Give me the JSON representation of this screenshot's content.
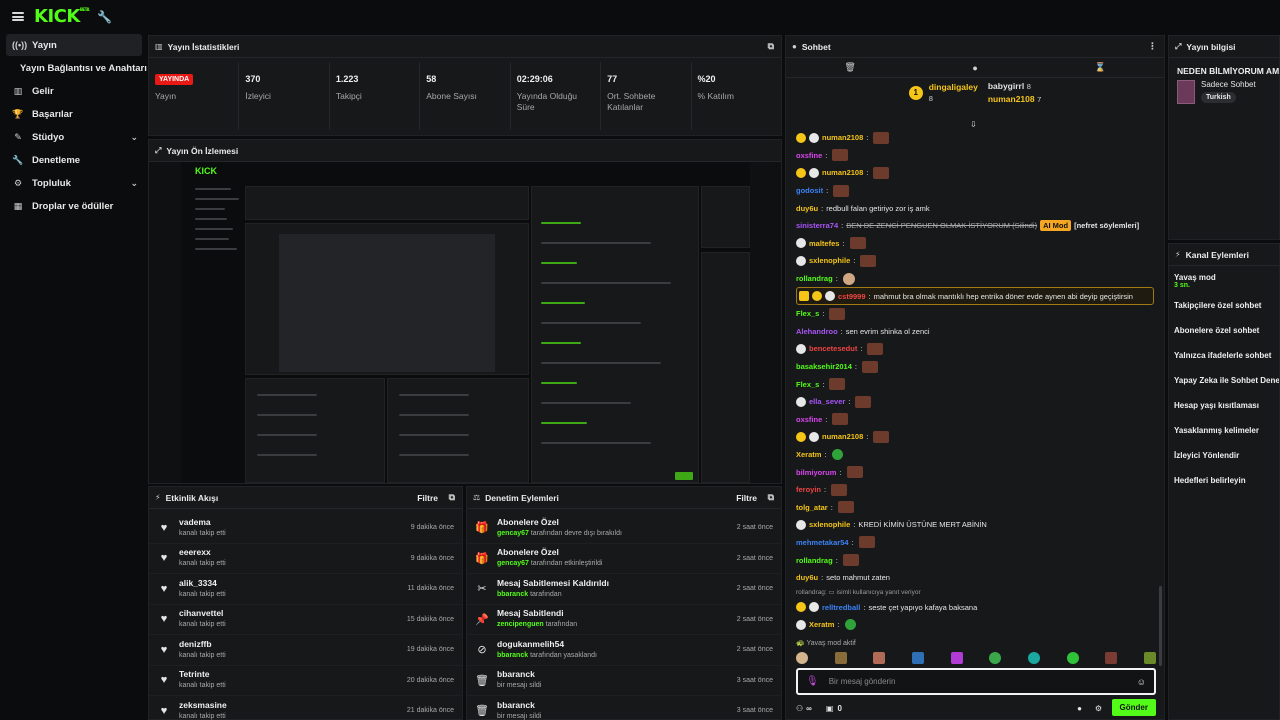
{
  "app": {
    "logo": "KICK",
    "logo_badge": "BETA"
  },
  "sidebar": {
    "items": [
      {
        "label": "Yayın",
        "icon": "broadcast-icon"
      },
      {
        "label": "Yayın Bağlantısı ve Anahtarı",
        "sub": true
      },
      {
        "label": "Gelir",
        "icon": "chart-icon"
      },
      {
        "label": "Başarılar",
        "icon": "trophy-icon"
      },
      {
        "label": "Stüdyo",
        "icon": "studio-icon"
      },
      {
        "label": "Denetleme",
        "icon": "wrench-icon"
      },
      {
        "label": "Topluluk",
        "icon": "community-icon"
      },
      {
        "label": "Droplar ve ödüller",
        "icon": "gift-icon"
      }
    ]
  },
  "stats": {
    "title": "Yayın İstatistikleri",
    "live_badge": "YAYINDA",
    "items": [
      {
        "value": "",
        "label": "Yayın"
      },
      {
        "value": "370",
        "label": "İzleyici"
      },
      {
        "value": "1.223",
        "label": "Takipçi"
      },
      {
        "value": "58",
        "label": "Abone Sayısı"
      },
      {
        "value": "02:29:06",
        "label": "Yayında Olduğu Süre"
      },
      {
        "value": "77",
        "label": "Ort. Sohbete Katılanlar"
      },
      {
        "value": "%20",
        "label": "% Katılım"
      }
    ]
  },
  "preview": {
    "title": "Yayın Ön İzlemesi",
    "mini_logo": "KICK"
  },
  "activity": {
    "title": "Etkinlik Akışı",
    "filter": "Filtre",
    "items": [
      {
        "name": "vadema",
        "sub": "kanalı takip etti",
        "time": "9 dakika önce"
      },
      {
        "name": "eeerexx",
        "sub": "kanalı takip etti",
        "time": "9 dakika önce"
      },
      {
        "name": "alik_3334",
        "sub": "kanalı takip etti",
        "time": "11 dakika önce"
      },
      {
        "name": "cihanvettel",
        "sub": "kanalı takip etti",
        "time": "15 dakika önce"
      },
      {
        "name": "denizffb",
        "sub": "kanalı takip etti",
        "time": "19 dakika önce"
      },
      {
        "name": "Tetrinte",
        "sub": "kanalı takip etti",
        "time": "20 dakika önce"
      },
      {
        "name": "zeksmasine",
        "sub": "kanalı takip etti",
        "time": "21 dakika önce"
      }
    ]
  },
  "moderation": {
    "title": "Denetim Eylemleri",
    "filter": "Filtre",
    "items": [
      {
        "icon": "gift-icon",
        "name": "Abonelere Özel",
        "actor": "gencay67",
        "sub": " tarafından devre dışı bırakıldı",
        "time": "2 saat önce"
      },
      {
        "icon": "gift-icon",
        "name": "Abonelere Özel",
        "actor": "gencay67",
        "sub": " tarafından etkinleştirildi",
        "time": "2 saat önce"
      },
      {
        "icon": "unpin-icon",
        "name": "Mesaj Sabitlemesi Kaldırıldı",
        "actor": "bbaranck",
        "sub": " tarafından",
        "time": "2 saat önce"
      },
      {
        "icon": "pin-icon",
        "name": "Mesaj Sabitlendi",
        "actor": "zencipenguen",
        "sub": " tarafından",
        "time": "2 saat önce"
      },
      {
        "icon": "ban-icon",
        "name": "dogukanmelih54",
        "actor": "bbaranck",
        "sub": " tarafından yasaklandı",
        "time": "2 saat önce"
      },
      {
        "icon": "trash-icon",
        "name": "bbaranck",
        "actor": "",
        "sub": "bir mesajı sildi",
        "time": "3 saat önce"
      },
      {
        "icon": "trash-icon",
        "name": "bbaranck",
        "actor": "",
        "sub": "bir mesajı sildi",
        "time": "3 saat önce"
      }
    ]
  },
  "chat": {
    "title": "Sohbet",
    "leaders": [
      {
        "rank": "1",
        "name": "dingaligaley",
        "count": "8"
      },
      {
        "name": "babygirrl",
        "count": "8"
      },
      {
        "name": "numan2108",
        "count": "7"
      }
    ],
    "messages": [
      {
        "badges": [
          "gold",
          "pk"
        ],
        "user": "numan2108",
        "color": "#f5c518",
        "text": "",
        "emote": "e"
      },
      {
        "badges": [],
        "user": "oxsfine",
        "color": "#d946ef",
        "text": "",
        "emote": "e"
      },
      {
        "badges": [
          "gold",
          "pk"
        ],
        "user": "numan2108",
        "color": "#f5c518",
        "text": "",
        "emote": "e"
      },
      {
        "badges": [],
        "user": "godosit",
        "color": "#3b82f6",
        "text": "",
        "emote": "e"
      },
      {
        "badges": [],
        "user": "duy6u",
        "color": "#f5c518",
        "text": "redbull falan getiriyo zor iş amk",
        "emote": ""
      },
      {
        "badges": [],
        "user": "sinisterra74",
        "color": "#a855f7",
        "text": "",
        "emote": "",
        "strike": "BEN DE ZENCİ PENGUEN OLMAK İSTİYORUM (Silindi)",
        "mod": "AI Mod",
        "note": "[nefret söylemleri]"
      },
      {
        "badges": [
          "pk"
        ],
        "user": "maltefes",
        "color": "#f5c518",
        "text": "",
        "emote": "e"
      },
      {
        "badges": [
          "pk"
        ],
        "user": "sxlenophile",
        "color": "#f5c518",
        "text": "",
        "emote": "e"
      },
      {
        "badges": [],
        "user": "rollandrag",
        "color": "#53fc18",
        "text": "",
        "emote": "s"
      },
      {
        "badges": [
          "cr",
          "gold",
          "pk"
        ],
        "user": "cst9999",
        "color": "#ef4444",
        "text": "mahmut bra olmak mantıklı hep entrika döner evde aynen abi deyip geçiştirsin",
        "emote": "",
        "highlight": true
      },
      {
        "badges": [],
        "user": "Flex_s",
        "color": "#53fc18",
        "text": "",
        "emote": "e"
      },
      {
        "badges": [],
        "user": "Alehandroo",
        "color": "#a855f7",
        "text": "sen evrim shinka ol zenci",
        "emote": ""
      },
      {
        "badges": [
          "pk"
        ],
        "user": "bencetesedut",
        "color": "#ef4444",
        "text": "",
        "emote": "e"
      },
      {
        "badges": [],
        "user": "basaksehir2014",
        "color": "#53fc18",
        "text": "",
        "emote": "e"
      },
      {
        "badges": [],
        "user": "Flex_s",
        "color": "#53fc18",
        "text": "",
        "emote": "e"
      },
      {
        "badges": [
          "pk"
        ],
        "user": "ella_sever",
        "color": "#a855f7",
        "text": "",
        "emote": "e"
      },
      {
        "badges": [],
        "user": "oxsfine",
        "color": "#d946ef",
        "text": "",
        "emote": "e"
      },
      {
        "badges": [
          "gold",
          "pk"
        ],
        "user": "numan2108",
        "color": "#f5c518",
        "text": "",
        "emote": "e"
      },
      {
        "badges": [],
        "user": "Xeratm",
        "color": "#f5c518",
        "text": "",
        "emote": "g"
      },
      {
        "badges": [],
        "user": "bilmiyorum",
        "color": "#d946ef",
        "text": "",
        "emote": "e"
      },
      {
        "badges": [],
        "user": "feroyin",
        "color": "#ef4444",
        "text": "",
        "emote": "e"
      },
      {
        "badges": [],
        "user": "tolg_atar",
        "color": "#f5c518",
        "text": "",
        "emote": "e"
      },
      {
        "badges": [
          "pk"
        ],
        "user": "sxlenophile",
        "color": "#f5c518",
        "text": "KREDİ KİMİN ÜSTÜNE MERT ABİNİN",
        "emote": ""
      },
      {
        "badges": [],
        "user": "mehmetakar54",
        "color": "#3b82f6",
        "text": "",
        "emote": "e"
      },
      {
        "badges": [],
        "user": "rollandrag",
        "color": "#53fc18",
        "text": "",
        "emote": "e"
      },
      {
        "badges": [],
        "user": "duy6u",
        "color": "#f5c518",
        "text": "seto mahmut zaten",
        "emote": ""
      }
    ],
    "reply_note": "rollandrag: ▭ isimli kullanıcıya yanıt veriyor",
    "tail": [
      {
        "badges": [
          "gold",
          "pk"
        ],
        "user": "relltredball",
        "color": "#3b82f6",
        "text": "seste çet yapıyo kafaya baksana",
        "emote": ""
      },
      {
        "badges": [
          "pk"
        ],
        "user": "Xeratm",
        "color": "#f5c518",
        "text": "",
        "emote": "g"
      }
    ],
    "slow_mode": "Yavaş mod aktif",
    "input_placeholder": "Bir mesaj gönderin",
    "footer_count_1": "∞",
    "footer_count_2": "0",
    "send": "Gönder"
  },
  "stream_info": {
    "title": "Yayın bilgisi",
    "stream_title": "NEDEN BİLMİYORUM AMA",
    "category": "Sadece Sohbet",
    "tag": "Turkish"
  },
  "channel_actions": {
    "title": "Kanal Eylemleri",
    "items": [
      {
        "label": "Yavaş mod",
        "sub": "3 sn."
      },
      {
        "label": "Takipçilere özel sohbet",
        "sub": ""
      },
      {
        "label": "Abonelere özel sohbet",
        "sub": ""
      },
      {
        "label": "Yalnızca ifadelerle sohbet",
        "sub": ""
      },
      {
        "label": "Yapay Zeka ile Sohbet Denetimi",
        "sub": ""
      },
      {
        "label": "Hesap yaşı kısıtlaması",
        "sub": ""
      },
      {
        "label": "Yasaklanmış kelimeler",
        "sub": ""
      },
      {
        "label": "İzleyici Yönlendir",
        "sub": ""
      },
      {
        "label": "Hedefleri belirleyin",
        "sub": ""
      }
    ]
  }
}
